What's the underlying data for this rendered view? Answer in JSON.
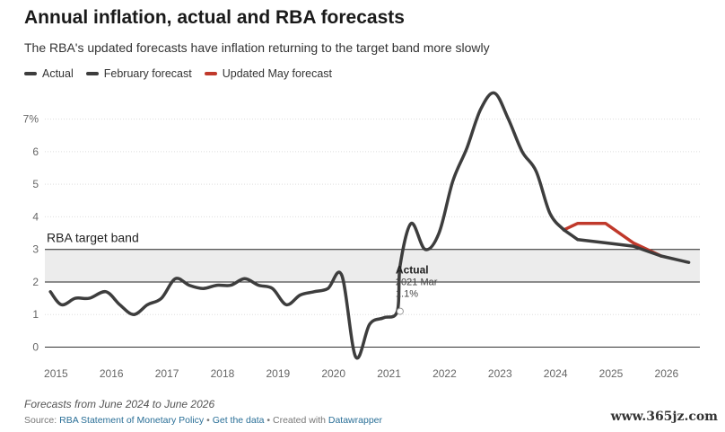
{
  "header": {
    "title": "Annual inflation, actual and RBA forecasts",
    "subtitle": "The RBA's updated forecasts have inflation returning to the target band more slowly"
  },
  "legend": [
    {
      "label": "Actual",
      "color": "#3d3d3d"
    },
    {
      "label": "February forecast",
      "color": "#3d3d3d"
    },
    {
      "label": "Updated May forecast",
      "color": "#c0392b"
    }
  ],
  "footer": {
    "notes": "Forecasts from June 2024 to June 2026",
    "source_prefix": "Source: ",
    "source_link": "RBA Statement of Monetary Policy",
    "sep1": " • ",
    "get_data": "Get the data",
    "sep2": " • Created with ",
    "datawrapper": "Datawrapper"
  },
  "watermark": "www.365jz.com",
  "chart_data": {
    "type": "line",
    "xlim": [
      2014.8,
      2026.6
    ],
    "ylim": [
      -0.4,
      7.9
    ],
    "x_ticks": [
      2015,
      2016,
      2017,
      2018,
      2019,
      2020,
      2021,
      2022,
      2023,
      2024,
      2025,
      2026
    ],
    "x_tick_labels": [
      "2015",
      "2016",
      "2017",
      "2018",
      "2019",
      "2020",
      "2021",
      "2022",
      "2023",
      "2024",
      "2025",
      "2026"
    ],
    "y_ticks": [
      0,
      1,
      2,
      3,
      4,
      5,
      6,
      7
    ],
    "y_tick_labels": [
      "0",
      "1",
      "2",
      "3",
      "4",
      "5",
      "6",
      "7%"
    ],
    "target_band": {
      "low": 2,
      "high": 3,
      "label": "RBA target band",
      "color": "#ececec"
    },
    "series": [
      {
        "name": "Actual",
        "color": "#3d3d3d",
        "x": [
          2014.9,
          2015.1,
          2015.35,
          2015.6,
          2015.9,
          2016.15,
          2016.4,
          2016.65,
          2016.9,
          2017.15,
          2017.4,
          2017.65,
          2017.9,
          2018.15,
          2018.4,
          2018.65,
          2018.9,
          2019.15,
          2019.4,
          2019.65,
          2019.9,
          2020.15,
          2020.4,
          2020.65,
          2020.9,
          2021.15,
          2021.2,
          2021.4,
          2021.65,
          2021.9,
          2022.15,
          2022.4,
          2022.65,
          2022.9,
          2023.15,
          2023.4,
          2023.65,
          2023.9,
          2024.15
        ],
        "y": [
          1.7,
          1.3,
          1.5,
          1.5,
          1.7,
          1.3,
          1.0,
          1.3,
          1.5,
          2.1,
          1.9,
          1.8,
          1.9,
          1.9,
          2.1,
          1.9,
          1.8,
          1.3,
          1.6,
          1.7,
          1.8,
          2.2,
          -0.3,
          0.7,
          0.9,
          1.1,
          2.5,
          3.8,
          3.0,
          3.5,
          5.1,
          6.1,
          7.3,
          7.8,
          7.0,
          6.0,
          5.4,
          4.1,
          3.6
        ]
      },
      {
        "name": "February forecast",
        "color": "#3d3d3d",
        "x": [
          2024.15,
          2024.4,
          2024.9,
          2025.4,
          2025.9,
          2026.4
        ],
        "y": [
          3.6,
          3.3,
          3.2,
          3.1,
          2.8,
          2.6
        ]
      },
      {
        "name": "Updated May forecast",
        "color": "#c0392b",
        "x": [
          2024.15,
          2024.4,
          2024.9,
          2025.4,
          2025.9
        ],
        "y": [
          3.6,
          3.8,
          3.8,
          3.2,
          2.8
        ]
      }
    ],
    "annotation": {
      "title": "Actual",
      "line1": "2021 Mar",
      "line2": "1.1%",
      "x": 2021.2,
      "y": 1.1
    }
  }
}
